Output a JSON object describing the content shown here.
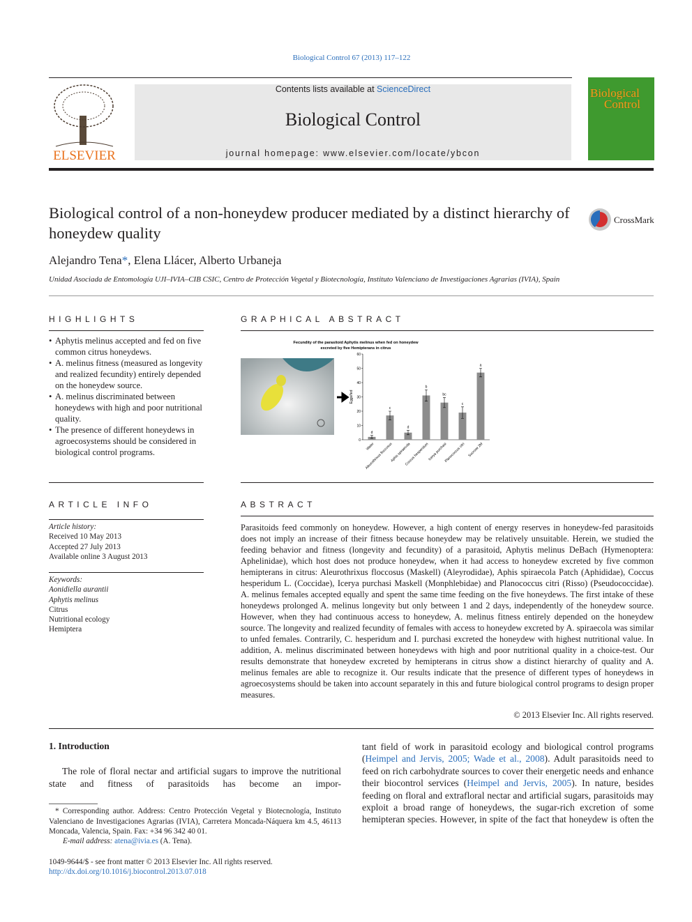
{
  "header": {
    "citation": "Biological Control 67 (2013) 117–122",
    "contents_prefix": "Contents lists available at ",
    "contents_link": "ScienceDirect",
    "journal": "Biological Control",
    "homepage_label": "journal homepage: ",
    "homepage_url": "www.elsevier.com/locate/ybcon",
    "publisher": "ELSEVIER",
    "cover_title": [
      "Biological",
      "Control"
    ],
    "crossmark": "CrossMark"
  },
  "article": {
    "title": "Biological control of a non-honeydew producer mediated by a distinct hierarchy of honeydew quality",
    "authors": [
      "Alejandro Tena",
      "*",
      ", Elena Llácer, Alberto Urbaneja"
    ],
    "affiliation": "Unidad Asociada de Entomología UJI–IVIA–CIB CSIC, Centro de Protección Vegetal y Biotecnología, Instituto Valenciano de Investigaciones Agrarias (IVIA), Spain"
  },
  "highlights": {
    "heading": "HIGHLIGHTS",
    "items": [
      "Aphytis melinus accepted and fed on five common citrus honeydews.",
      "A. melinus fitness (measured as longevity and realized fecundity) entirely depended on the honeydew source.",
      "A. melinus discriminated between honeydews with high and poor nutritional quality.",
      "The presence of different honeydews in agroecosystems should be considered in biological control programs."
    ]
  },
  "graphical_abstract": {
    "heading": "GRAPHICAL ABSTRACT",
    "chart": {
      "type": "bar",
      "title": [
        "Fecundity of the parasitoid Aphytis melinus when fed on honeydew",
        "excreted by five Hemipterans in citrus"
      ],
      "y_label": "Eggs/fed",
      "categories": [
        "Water",
        "Aleurothrixus floccosus",
        "Aphis spiraecola",
        "Coccus hesperidum",
        "Icerya purchasi",
        "Planococcus citri",
        "Sucrose 2M"
      ],
      "values": [
        2,
        17,
        5,
        31,
        26,
        19,
        47
      ],
      "errors": [
        1,
        3,
        1.5,
        4,
        3.5,
        4,
        3
      ],
      "significance": [
        "d",
        "c",
        "d",
        "b",
        "bc",
        "c",
        "a"
      ],
      "color": "#8c8c8c",
      "ylim": [
        0,
        60
      ],
      "yticks": [
        0,
        10,
        20,
        30,
        40,
        50,
        60
      ]
    }
  },
  "article_info": {
    "heading": "ARTICLE INFO",
    "history_label": "Article history:",
    "history": [
      "Received 10 May 2013",
      "Accepted 27 July 2013",
      "Available online 3 August 2013"
    ],
    "keywords_label": "Keywords:",
    "keywords": [
      "Aonidiella aurantii",
      "Aphytis melinus",
      "Citrus",
      "Nutritional ecology",
      "Hemiptera"
    ]
  },
  "abstract": {
    "heading": "ABSTRACT",
    "text": "Parasitoids feed commonly on honeydew. However, a high content of energy reserves in honeydew-fed parasitoids does not imply an increase of their fitness because honeydew may be relatively unsuitable. Herein, we studied the feeding behavior and fitness (longevity and fecundity) of a parasitoid, Aphytis melinus DeBach (Hymenoptera: Aphelinidae), which host does not produce honeydew, when it had access to honeydew excreted by five common hemipterans in citrus: Aleurothrixus floccosus (Maskell) (Aleyrodidae), Aphis spiraecola Patch (Aphididae), Coccus hesperidum L. (Coccidae), Icerya purchasi Maskell (Monphlebidae) and Planococcus citri (Risso) (Pseudococcidae). A. melinus females accepted equally and spent the same time feeding on the five honeydews. The first intake of these honeydews prolonged A. melinus longevity but only between 1 and 2 days, independently of the honeydew source. However, when they had continuous access to honeydew, A. melinus fitness entirely depended on the honeydew source. The longevity and realized fecundity of females with access to honeydew excreted by A. spiraecola was similar to unfed females. Contrarily, C. hesperidum and I. purchasi excreted the honeydew with highest nutritional value. In addition, A. melinus discriminated between honeydews with high and poor nutritional quality in a choice-test. Our results demonstrate that honeydew excreted by hemipterans in citrus show a distinct hierarchy of quality and A. melinus females are able to recognize it. Our results indicate that the presence of different types of honeydews in agroecosystems should be taken into account separately in this and future biological control programs to design proper measures.",
    "copyright": "© 2013 Elsevier Inc. All rights reserved."
  },
  "introduction": {
    "heading": "1. Introduction",
    "left": "The role of floral nectar and artificial sugars to improve the nutritional state and fitness of parasitoids has become an impor-",
    "right": [
      "tant field of work in parasitoid ecology and biological control programs (",
      "Heimpel and Jervis, 2005; Wade et al., 2008",
      "). Adult parasitoids need to feed on rich carbohydrate sources to cover their energetic needs and enhance their biocontrol services (",
      "Heimpel and Jervis, 2005",
      "). In nature, besides feeding on floral and extrafloral nectar and artificial sugars, parasitoids may exploit a broad range of honeydews, the sugar-rich excretion of some hemipteran species. However, in spite of the fact that honeydew is often the"
    ]
  },
  "footnote": {
    "corresponding": "* Corresponding author. Address: Centro Protección Vegetal y Biotecnología, Instituto Valenciano de Investigaciones Agrarias (IVIA), Carretera Moncada-Náquera km 4.5, 46113 Moncada, Valencia, Spain. Fax: +34 96 342 40 01.",
    "email_label": "E-mail address: ",
    "email": "atena@ivia.es",
    "email_suffix": " (A. Tena)."
  },
  "footer": {
    "issn": "1049-9644/$ - see front matter © 2013 Elsevier Inc. All rights reserved.",
    "doi": "http://dx.doi.org/10.1016/j.biocontrol.2013.07.018"
  }
}
